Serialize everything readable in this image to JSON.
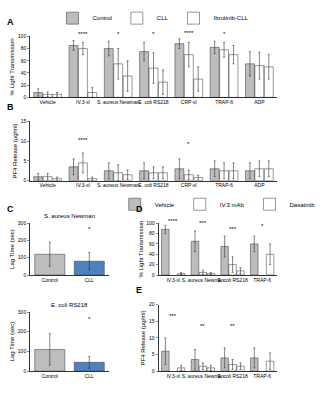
{
  "chart_data": [
    {
      "panel_label": "A",
      "type": "bar",
      "y_label": "% Light Transmission",
      "categories": [
        "Vehicle",
        "IV.3-xl",
        "S. aureus Newman",
        "E. coli RS218",
        "CRP-xl",
        "TRAP-6",
        "ADP"
      ],
      "series": [
        {
          "name": "Control",
          "color": "#bdbdbd",
          "values": [
            8,
            85,
            80,
            75,
            88,
            82,
            55
          ],
          "errors": [
            6,
            8,
            12,
            15,
            8,
            10,
            20
          ]
        },
        {
          "name": "CLL",
          "color": "#4f81bd",
          "marker": "hatched",
          "values": [
            5,
            80,
            55,
            48,
            70,
            78,
            52
          ],
          "errors": [
            4,
            10,
            25,
            25,
            20,
            12,
            22
          ]
        },
        {
          "name": "Ibrutinib-CLL",
          "color": "#8cc084",
          "marker": "hatched",
          "values": [
            5,
            8,
            35,
            25,
            30,
            70,
            50
          ],
          "errors": [
            3,
            8,
            25,
            20,
            20,
            15,
            20
          ]
        }
      ],
      "ylim": [
        0,
        100
      ],
      "yticks": [
        0,
        20,
        40,
        60,
        80,
        100
      ],
      "legend": "top",
      "grid": false,
      "annotations": [
        {
          "category": "IV.3-xl",
          "y": 95,
          "text": "****"
        },
        {
          "category": "S. aureus Newman",
          "y": 96,
          "text": "*"
        },
        {
          "category": "E. coli RS218",
          "y": 95,
          "text": "*"
        },
        {
          "category": "CRP-xl",
          "y": 97,
          "text": "****"
        },
        {
          "category": "TRAP-6",
          "y": 96,
          "text": "*"
        }
      ]
    },
    {
      "panel_label": "B",
      "type": "bar",
      "y_label": "PF4 Release (µg/ml)",
      "categories": [
        "Vehicle",
        "IV.3-xl",
        "S. aureus Newman",
        "E. coli RS218",
        "CRP-xl",
        "TRAP-6",
        "ADP"
      ],
      "series": [
        {
          "name": "Control",
          "color": "#bdbdbd",
          "values": [
            1,
            3.5,
            2.5,
            2.5,
            3,
            3,
            2.5
          ],
          "errors": [
            0.8,
            2,
            2,
            2,
            2.5,
            2,
            2
          ]
        },
        {
          "name": "CLL",
          "color": "#4f81bd",
          "marker": "hatched",
          "values": [
            1,
            4.5,
            2,
            2,
            1.5,
            2.5,
            3
          ],
          "errors": [
            0.8,
            2.5,
            2,
            1.5,
            1.2,
            2,
            2
          ]
        },
        {
          "name": "Ibrutinib-CLL",
          "color": "#8cc084",
          "marker": "hatched",
          "values": [
            0.5,
            0.5,
            1.5,
            2,
            0.8,
            2.5,
            3
          ],
          "errors": [
            0.4,
            0.4,
            1.2,
            1.5,
            0.6,
            2,
            2
          ]
        }
      ],
      "ylim": [
        0,
        15
      ],
      "yticks": [
        0,
        5,
        10,
        15
      ],
      "grid": false,
      "annotations": [
        {
          "category": "IV.3-xl",
          "y": 9,
          "text": "****"
        },
        {
          "category": "CRP-xl",
          "y": 8,
          "text": "*"
        }
      ]
    },
    {
      "panel_label": "C",
      "type": "bar",
      "title": "S. aureus Newman",
      "y_label": "Lag Time (sec)",
      "categories": [
        "Control",
        "CLL"
      ],
      "values": [
        120,
        80
      ],
      "errors": [
        70,
        50
      ],
      "colors": [
        "#bdbdbd",
        "#4f81bd"
      ],
      "ylim": [
        0,
        300
      ],
      "yticks": [
        0,
        100,
        200,
        300
      ],
      "grid": false,
      "annotations": [
        {
          "category": "CLL",
          "y": 240,
          "text": "*"
        }
      ]
    },
    {
      "type": "bar",
      "title": "E. coli RS218",
      "y_label": "Lag Time (sec)",
      "categories": [
        "Control",
        "CLL"
      ],
      "values": [
        110,
        45
      ],
      "errors": [
        80,
        30
      ],
      "colors": [
        "#bdbdbd",
        "#4f81bd"
      ],
      "ylim": [
        0,
        300
      ],
      "yticks": [
        0,
        100,
        200,
        300
      ],
      "grid": false,
      "annotations": [
        {
          "category": "CLL",
          "y": 240,
          "text": "*"
        }
      ]
    },
    {
      "panel_label": "D",
      "type": "bar",
      "y_label": "% Light Transmission",
      "categories": [
        "IV.3-xl",
        "S. aureus Newman",
        "E. coli RS218",
        "TRAP-6"
      ],
      "series": [
        {
          "name": "Vehicle",
          "color": "#bdbdbd",
          "values": [
            88,
            65,
            55,
            60
          ],
          "errors": [
            8,
            20,
            20,
            15
          ]
        },
        {
          "name": "IV.3 mAb",
          "color": "#c9b8e0",
          "marker": "dotted",
          "values": [
            null,
            5,
            20,
            null
          ],
          "errors": [
            null,
            4,
            15,
            null
          ]
        },
        {
          "name": "Dasatinib",
          "color": "#6a6fc4",
          "marker": "hatched",
          "values": [
            3,
            3,
            8,
            40
          ],
          "errors": [
            2,
            2,
            6,
            20
          ]
        }
      ],
      "ylim": [
        0,
        100
      ],
      "yticks": [
        0,
        20,
        40,
        60,
        80,
        100
      ],
      "legend": "top",
      "grid": false,
      "annotations": [
        {
          "category": "IV.3-xl",
          "y": 95,
          "text": "****"
        },
        {
          "category": "S. aureus Newman",
          "y": 90,
          "text": "***"
        },
        {
          "category": "E. coli RS218",
          "y": 80,
          "text": "***"
        },
        {
          "category": "TRAP-6",
          "y": 85,
          "text": "*"
        }
      ]
    },
    {
      "panel_label": "E",
      "type": "bar",
      "y_label": "PF4 Release (µg/ml)",
      "categories": [
        "IV.3-xl",
        "S. aureus Newman",
        "E. coli RS218",
        "TRAP-6"
      ],
      "series": [
        {
          "name": "Vehicle",
          "color": "#bdbdbd",
          "values": [
            6,
            3.5,
            4,
            4
          ],
          "errors": [
            4,
            3,
            3,
            3
          ]
        },
        {
          "name": "IV.3 mAb",
          "color": "#c9b8e0",
          "marker": "dotted",
          "values": [
            null,
            1.5,
            2,
            null
          ],
          "errors": [
            null,
            1,
            1.5,
            null
          ]
        },
        {
          "name": "Dasatinib",
          "color": "#6a6fc4",
          "marker": "hatched",
          "values": [
            1,
            1,
            1.5,
            3
          ],
          "errors": [
            0.8,
            0.8,
            1,
            2.5
          ]
        }
      ],
      "ylim": [
        0,
        20
      ],
      "yticks": [
        0,
        5,
        10,
        15,
        20
      ],
      "grid": false,
      "annotations": [
        {
          "category": "IV.3-xl",
          "y": 15,
          "text": "***"
        },
        {
          "category": "S. aureus Newman",
          "y": 12,
          "text": "**"
        },
        {
          "category": "E. coli RS218",
          "y": 12,
          "text": "**"
        }
      ]
    }
  ]
}
